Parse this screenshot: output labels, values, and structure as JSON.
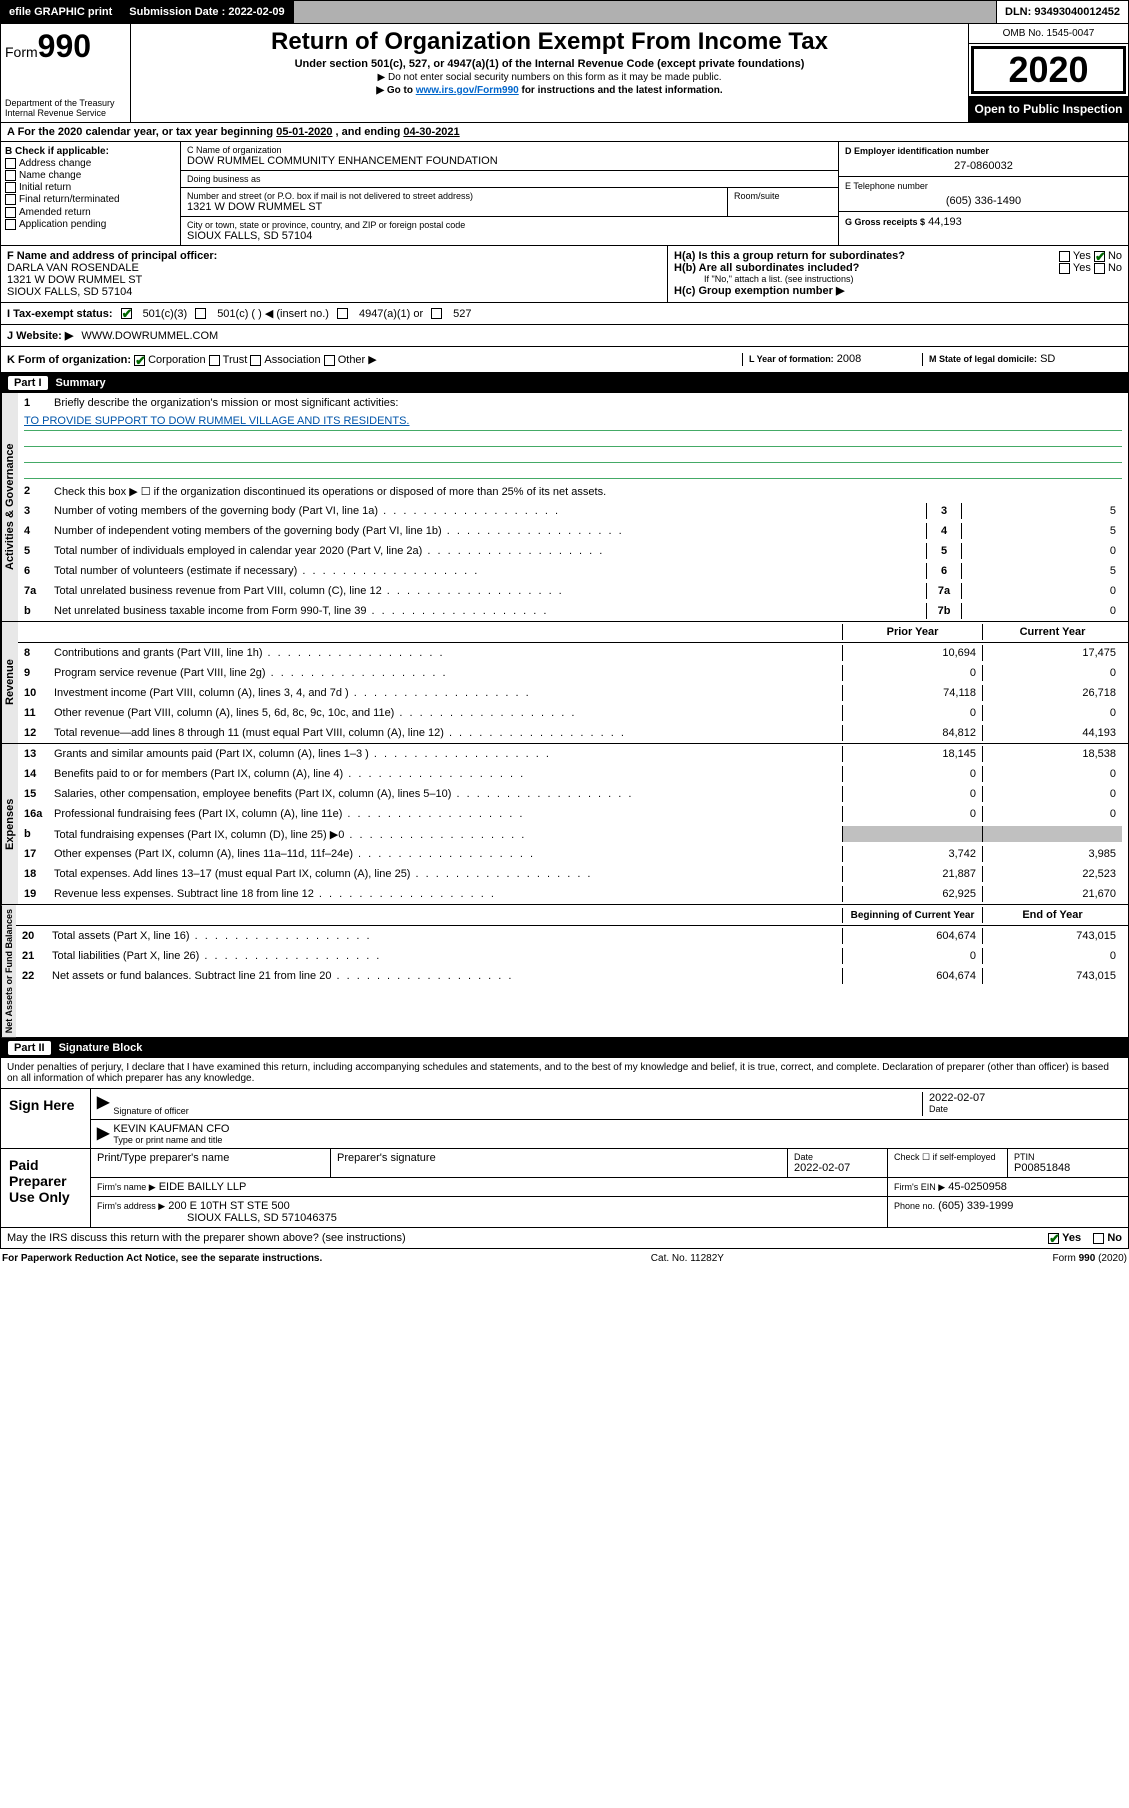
{
  "topbar": {
    "efile": "efile GRAPHIC print",
    "submission_label": "Submission Date :",
    "submission_date": "2022-02-09",
    "dln_label": "DLN:",
    "dln": "93493040012452"
  },
  "header": {
    "form_prefix": "Form",
    "form_number": "990",
    "dept": "Department of the Treasury",
    "irs": "Internal Revenue Service",
    "title": "Return of Organization Exempt From Income Tax",
    "subtitle": "Under section 501(c), 527, or 4947(a)(1) of the Internal Revenue Code (except private foundations)",
    "note1": "▶ Do not enter social security numbers on this form as it may be made public.",
    "note2_pre": "▶ Go to ",
    "note2_link": "www.irs.gov/Form990",
    "note2_post": " for instructions and the latest information.",
    "omb": "OMB No. 1545-0047",
    "year": "2020",
    "open": "Open to Public Inspection"
  },
  "period": {
    "label_a": "A For the 2020 calendar year, or tax year beginning ",
    "start": "05-01-2020",
    "mid": " , and ending ",
    "end": "04-30-2021"
  },
  "box_b": {
    "title": "B Check if applicable:",
    "opts": [
      "Address change",
      "Name change",
      "Initial return",
      "Final return/terminated",
      "Amended return",
      "Application pending"
    ]
  },
  "box_c": {
    "name_lbl": "C Name of organization",
    "name": "DOW RUMMEL COMMUNITY ENHANCEMENT FOUNDATION",
    "dba_lbl": "Doing business as",
    "dba": "",
    "street_lbl": "Number and street (or P.O. box if mail is not delivered to street address)",
    "room_lbl": "Room/suite",
    "street": "1321 W DOW RUMMEL ST",
    "city_lbl": "City or town, state or province, country, and ZIP or foreign postal code",
    "city": "SIOUX FALLS, SD  57104"
  },
  "box_d": {
    "lbl": "D Employer identification number",
    "val": "27-0860032"
  },
  "box_e": {
    "lbl": "E Telephone number",
    "val": "(605) 336-1490"
  },
  "box_g": {
    "lbl": "G Gross receipts $",
    "val": "44,193"
  },
  "box_f": {
    "lbl": "F  Name and address of principal officer:",
    "name": "DARLA VAN ROSENDALE",
    "street": "1321 W DOW RUMMEL ST",
    "city": "SIOUX FALLS, SD  57104"
  },
  "box_h": {
    "a_lbl": "H(a)  Is this a group return for subordinates?",
    "a_yes": "Yes",
    "a_no": "No",
    "b_lbl": "H(b)  Are all subordinates included?",
    "b_yes": "Yes",
    "b_no": "No",
    "b_note": "If \"No,\" attach a list. (see instructions)",
    "c_lbl": "H(c)  Group exemption number ▶"
  },
  "box_i": {
    "lbl": "I   Tax-exempt status:",
    "o1": "501(c)(3)",
    "o2": "501(c) (   ) ◀ (insert no.)",
    "o3": "4947(a)(1) or",
    "o4": "527"
  },
  "box_j": {
    "lbl": "J   Website: ▶",
    "val": "WWW.DOWRUMMEL.COM"
  },
  "box_k": {
    "lbl": "K Form of organization:",
    "opts": [
      "Corporation",
      "Trust",
      "Association",
      "Other ▶"
    ]
  },
  "box_l": {
    "lbl": "L Year of formation:",
    "val": "2008"
  },
  "box_m": {
    "lbl": "M State of legal domicile:",
    "val": "SD"
  },
  "part1": {
    "num": "Part I",
    "title": "Summary"
  },
  "gov": {
    "tab": "Activities & Governance",
    "l1_lbl": "Briefly describe the organization's mission or most significant activities:",
    "l1_text": "TO PROVIDE SUPPORT TO DOW RUMMEL VILLAGE AND ITS RESIDENTS.",
    "l2": "Check this box ▶ ☐  if the organization discontinued its operations or disposed of more than 25% of its net assets.",
    "rows": [
      {
        "n": "3",
        "lbl": "Number of voting members of the governing body (Part VI, line 1a)",
        "cell": "3",
        "val": "5"
      },
      {
        "n": "4",
        "lbl": "Number of independent voting members of the governing body (Part VI, line 1b)",
        "cell": "4",
        "val": "5"
      },
      {
        "n": "5",
        "lbl": "Total number of individuals employed in calendar year 2020 (Part V, line 2a)",
        "cell": "5",
        "val": "0"
      },
      {
        "n": "6",
        "lbl": "Total number of volunteers (estimate if necessary)",
        "cell": "6",
        "val": "5"
      },
      {
        "n": "7a",
        "lbl": "Total unrelated business revenue from Part VIII, column (C), line 12",
        "cell": "7a",
        "val": "0"
      },
      {
        "n": "b",
        "lbl": "Net unrelated business taxable income from Form 990-T, line 39",
        "cell": "7b",
        "val": "0"
      }
    ]
  },
  "rev": {
    "tab": "Revenue",
    "hdr1": "Prior Year",
    "hdr2": "Current Year",
    "rows": [
      {
        "n": "8",
        "lbl": "Contributions and grants (Part VIII, line 1h)",
        "v1": "10,694",
        "v2": "17,475"
      },
      {
        "n": "9",
        "lbl": "Program service revenue (Part VIII, line 2g)",
        "v1": "0",
        "v2": "0"
      },
      {
        "n": "10",
        "lbl": "Investment income (Part VIII, column (A), lines 3, 4, and 7d )",
        "v1": "74,118",
        "v2": "26,718"
      },
      {
        "n": "11",
        "lbl": "Other revenue (Part VIII, column (A), lines 5, 6d, 8c, 9c, 10c, and 11e)",
        "v1": "0",
        "v2": "0"
      },
      {
        "n": "12",
        "lbl": "Total revenue—add lines 8 through 11 (must equal Part VIII, column (A), line 12)",
        "v1": "84,812",
        "v2": "44,193"
      }
    ]
  },
  "exp": {
    "tab": "Expenses",
    "rows": [
      {
        "n": "13",
        "lbl": "Grants and similar amounts paid (Part IX, column (A), lines 1–3 )",
        "v1": "18,145",
        "v2": "18,538"
      },
      {
        "n": "14",
        "lbl": "Benefits paid to or for members (Part IX, column (A), line 4)",
        "v1": "0",
        "v2": "0"
      },
      {
        "n": "15",
        "lbl": "Salaries, other compensation, employee benefits (Part IX, column (A), lines 5–10)",
        "v1": "0",
        "v2": "0"
      },
      {
        "n": "16a",
        "lbl": "Professional fundraising fees (Part IX, column (A), line 11e)",
        "v1": "0",
        "v2": "0"
      },
      {
        "n": "b",
        "lbl": "Total fundraising expenses (Part IX, column (D), line 25) ▶0",
        "v1": "",
        "v2": "",
        "grey": true
      },
      {
        "n": "17",
        "lbl": "Other expenses (Part IX, column (A), lines 11a–11d, 11f–24e)",
        "v1": "3,742",
        "v2": "3,985"
      },
      {
        "n": "18",
        "lbl": "Total expenses. Add lines 13–17 (must equal Part IX, column (A), line 25)",
        "v1": "21,887",
        "v2": "22,523"
      },
      {
        "n": "19",
        "lbl": "Revenue less expenses. Subtract line 18 from line 12",
        "v1": "62,925",
        "v2": "21,670"
      }
    ]
  },
  "net": {
    "tab": "Net Assets or Fund Balances",
    "hdr1": "Beginning of Current Year",
    "hdr2": "End of Year",
    "rows": [
      {
        "n": "20",
        "lbl": "Total assets (Part X, line 16)",
        "v1": "604,674",
        "v2": "743,015"
      },
      {
        "n": "21",
        "lbl": "Total liabilities (Part X, line 26)",
        "v1": "0",
        "v2": "0"
      },
      {
        "n": "22",
        "lbl": "Net assets or fund balances. Subtract line 21 from line 20",
        "v1": "604,674",
        "v2": "743,015"
      }
    ]
  },
  "part2": {
    "num": "Part II",
    "title": "Signature Block"
  },
  "penalties": "Under penalties of perjury, I declare that I have examined this return, including accompanying schedules and statements, and to the best of my knowledge and belief, it is true, correct, and complete. Declaration of preparer (other than officer) is based on all information of which preparer has any knowledge.",
  "sign": {
    "here": "Sign Here",
    "sig_of_officer": "Signature of officer",
    "date_lbl": "Date",
    "date": "2022-02-07",
    "name": "KEVIN KAUFMAN CFO",
    "type_lbl": "Type or print name and title"
  },
  "prep": {
    "lbl": "Paid Preparer Use Only",
    "h_name": "Print/Type preparer's name",
    "h_sig": "Preparer's signature",
    "h_date": "Date",
    "date": "2022-02-07",
    "h_self": "Check ☐ if self-employed",
    "h_ptin": "PTIN",
    "ptin": "P00851848",
    "firm_lbl": "Firm's name    ▶",
    "firm": "EIDE BAILLY LLP",
    "ein_lbl": "Firm's EIN ▶",
    "ein": "45-0250958",
    "addr_lbl": "Firm's address ▶",
    "addr1": "200 E 10TH ST STE 500",
    "addr2": "SIOUX FALLS, SD  571046375",
    "phone_lbl": "Phone no.",
    "phone": "(605) 339-1999"
  },
  "discuss": {
    "lbl": "May the IRS discuss this return with the preparer shown above? (see instructions)",
    "yes": "Yes",
    "no": "No"
  },
  "footer": {
    "left": "For Paperwork Reduction Act Notice, see the separate instructions.",
    "mid": "Cat. No. 11282Y",
    "right": "Form 990 (2020)"
  }
}
